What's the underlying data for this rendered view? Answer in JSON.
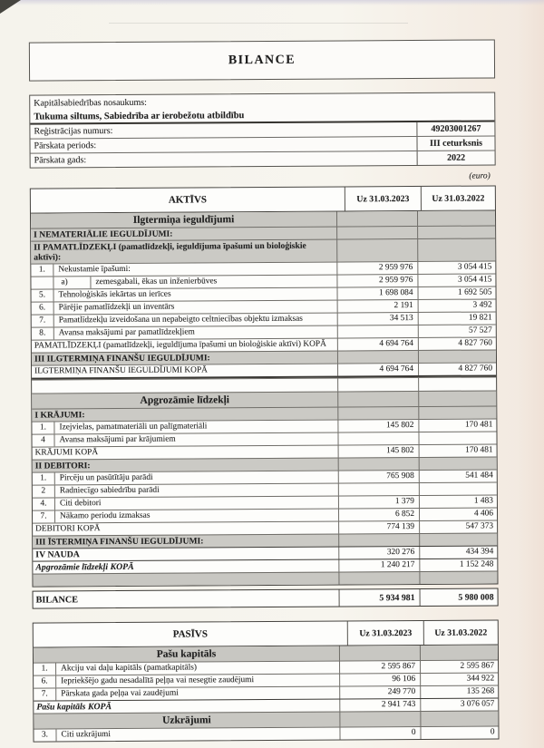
{
  "page": {
    "title": "BILANCE",
    "currency_note": "(euro)"
  },
  "info": {
    "company_label": "Kapitālsabiedrības nosaukums:",
    "company_name": "Tukuma siltums, Sabiedrība ar ierobežotu atbildību",
    "reg_label": "Reģistrācijas numurs:",
    "reg_value": "49203001267",
    "period_label": "Pārskata periods:",
    "period_value": "III ceturksnis",
    "year_label": "Pārskata gads:",
    "year_value": "2022"
  },
  "aktivs": {
    "header": {
      "label": "AKTĪVS",
      "col1": "Uz 31.03.2023",
      "col2": "Uz 31.03.2022"
    },
    "rows": [
      {
        "t": "section",
        "label": "Ilgtermiņa ieguldījumi"
      },
      {
        "t": "sub",
        "label": "I NEMATERIĀLIE IEGULDĪJUMI:"
      },
      {
        "t": "sub",
        "label": "II PAMATLĪDZEKĻI (pamatlīdzekļi, ieguldījuma īpašumi un bioloģiskie aktīvi):"
      },
      {
        "t": "item",
        "num": "1.",
        "label": "Nekustamie īpašumi:",
        "v1": "2 959 976",
        "v2": "3 054 415"
      },
      {
        "t": "subitem",
        "sub": "a)",
        "label": "zemesgabali, ēkas un inženierbūves",
        "v1": "2 959 976",
        "v2": "3 054 415"
      },
      {
        "t": "item",
        "num": "5.",
        "label": "Tehnoloģiskās iekārtas un ierīces",
        "v1": "1 698 084",
        "v2": "1 692 505"
      },
      {
        "t": "item",
        "num": "6.",
        "label": "Pārējie pamatlīdzekļi un inventārs",
        "v1": "2 191",
        "v2": "3 492"
      },
      {
        "t": "item",
        "num": "7.",
        "label": "Pamatlīdzekļu izveidošana un nepabeigto celtniecības objektu izmaksas",
        "v1": "34 513",
        "v2": "19 821"
      },
      {
        "t": "item",
        "num": "8.",
        "label": "Avansa maksājumi par pamatlīdzekļiem",
        "v1": "",
        "v2": "57 527"
      },
      {
        "t": "total",
        "label": "PAMATLĪDZEKĻI (pamatlīdzekļi, ieguldījuma īpašumi un bioloģiskie aktīvi) KOPĀ",
        "v1": "4 694 764",
        "v2": "4 827 760"
      },
      {
        "t": "sub",
        "label": "III ILGTERMIŅA FINANŠU IEGULDĪJUMI:"
      },
      {
        "t": "total",
        "cls": "tb",
        "label": "ILGTERMIŅA FINANŠU IEGULDĪJUMI KOPĀ",
        "v1": "4 694 764",
        "v2": "4 827 760"
      },
      {
        "t": "empty",
        "label": ""
      },
      {
        "t": "section",
        "label": "Apgrozāmie līdzekļi"
      },
      {
        "t": "sub",
        "label": "I KRĀJUMI:"
      },
      {
        "t": "item",
        "num": "1.",
        "label": "Izejvielas, pamatmateriāli un palīgmateriāli",
        "v1": "145 802",
        "v2": "170 481"
      },
      {
        "t": "item",
        "num": "4",
        "label": "Avansa maksājumi par krājumiem",
        "v1": "",
        "v2": ""
      },
      {
        "t": "total",
        "label": "KRĀJUMI KOPĀ",
        "v1": "145 802",
        "v2": "170 481"
      },
      {
        "t": "sub",
        "label": "II DEBITORI:"
      },
      {
        "t": "item",
        "num": "1.",
        "label": "Pircēju un pasūtītāju parādi",
        "v1": "765 908",
        "v2": "541 484"
      },
      {
        "t": "item",
        "num": "2",
        "label": "Radniecīgo sabiedrību parādi",
        "v1": "",
        "v2": ""
      },
      {
        "t": "item",
        "num": "4.",
        "label": "Citi debitori",
        "v1": "1 379",
        "v2": "1 483"
      },
      {
        "t": "item",
        "num": "7.",
        "label": "Nākamo periodu izmaksas",
        "v1": "6 852",
        "v2": "4 406"
      },
      {
        "t": "total",
        "label": "DEBITORI KOPĀ",
        "v1": "774 139",
        "v2": "547 373"
      },
      {
        "t": "sub",
        "label": "III ĪSTERMIŅA FINANŠU IEGULDĪJUMI:"
      },
      {
        "t": "totalb",
        "cls": "tt",
        "label": "IV NAUDA",
        "v1": "320 276",
        "v2": "434 394"
      },
      {
        "t": "totali",
        "cls": "tt",
        "label": "Apgrozāmie līdzekļi KOPĀ",
        "v1": "1 240 217",
        "v2": "1 152 248"
      },
      {
        "t": "grayrow",
        "label": ""
      }
    ]
  },
  "balance_total": {
    "label": "BILANCE",
    "v1": "5 934 981",
    "v2": "5 980 008"
  },
  "pasivs": {
    "header": {
      "label": "PASĪVS",
      "col1": "Uz 31.03.2023",
      "col2": "Uz 31.03.2022"
    },
    "rows": [
      {
        "t": "section",
        "label": "Pašu kapitāls"
      },
      {
        "t": "item",
        "num": "1.",
        "label": "Akciju vai daļu kapitāls (pamatkapitāls)",
        "v1": "2 595 867",
        "v2": "2 595 867"
      },
      {
        "t": "item",
        "num": "6.",
        "label": "Iepriekšējo gadu nesadalītā peļņa vai nesegtie zaudējumi",
        "v1": "96 106",
        "v2": "344 922"
      },
      {
        "t": "item",
        "num": "7.",
        "label": "Pārskata gada peļņa vai zaudējumi",
        "v1": "249 770",
        "v2": "135 268"
      },
      {
        "t": "totali",
        "cls": "tt",
        "label": "Pašu kapitāls KOPĀ",
        "v1": "2 941 743",
        "v2": "3 076 057"
      },
      {
        "t": "section",
        "label": "Uzkrājumi"
      },
      {
        "t": "item",
        "num": "3.",
        "label": "Citi uzkrājumi",
        "v1": "0",
        "v2": "0"
      }
    ]
  }
}
